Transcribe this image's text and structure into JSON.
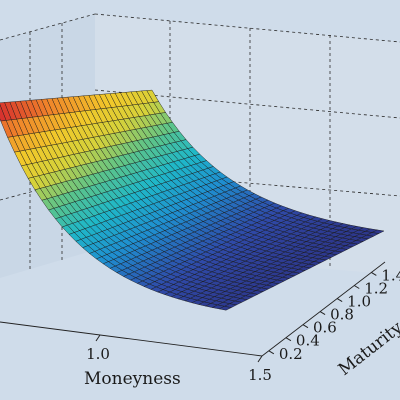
{
  "chart_data": {
    "type": "surface",
    "title": "",
    "x_axis": {
      "label": "Moneyness",
      "ticks": [
        "1.0",
        "1.5"
      ],
      "range": [
        0.5,
        1.5
      ]
    },
    "y_axis": {
      "label": "Maturity",
      "ticks": [
        "0.2",
        "0.4",
        "0.6",
        "0.8",
        "1.0",
        "1.2",
        "1.4"
      ],
      "range": [
        0.2,
        1.5
      ]
    },
    "z_axis": {
      "label": "",
      "ticks": []
    },
    "grid": true,
    "colormap": [
      "#2b2a78",
      "#2f4aa8",
      "#1f8fd0",
      "#1fb8c8",
      "#5cc48a",
      "#d6d23a",
      "#f2c82a",
      "#f0862a",
      "#d4272e"
    ],
    "surface_description_values": {
      "high_corner": {
        "moneyness": 0.5,
        "maturity": 0.2,
        "relative_height": 1.0
      },
      "low_region": {
        "moneyness": 1.5,
        "maturity": 0.2,
        "relative_height": 0.0
      }
    }
  }
}
